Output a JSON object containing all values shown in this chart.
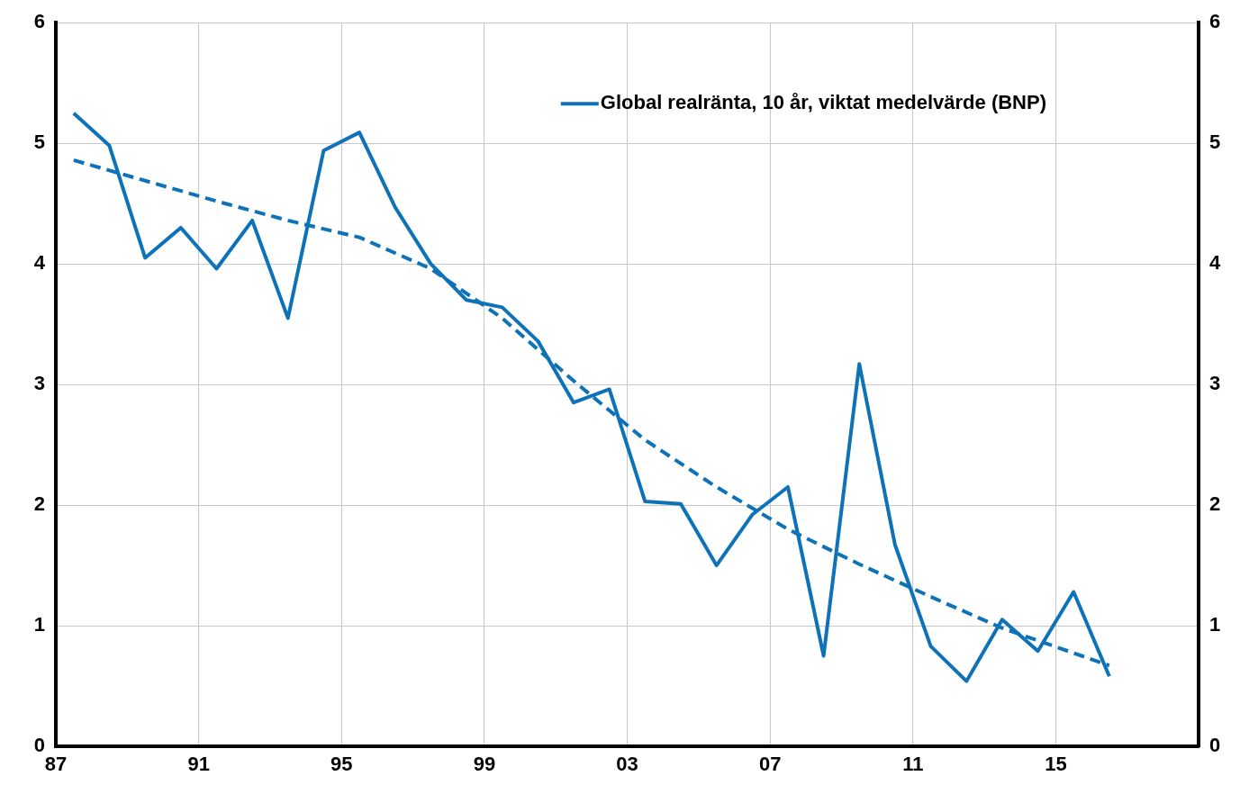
{
  "chart_data": {
    "type": "line",
    "xlim": [
      1987,
      2019
    ],
    "xticks": [
      {
        "value": 1987,
        "label": "87"
      },
      {
        "value": 1991,
        "label": "91"
      },
      {
        "value": 1995,
        "label": "95"
      },
      {
        "value": 1999,
        "label": "99"
      },
      {
        "value": 2003,
        "label": "03"
      },
      {
        "value": 2007,
        "label": "07"
      },
      {
        "value": 2011,
        "label": "11"
      },
      {
        "value": 2015,
        "label": "15"
      }
    ],
    "ylim": [
      0,
      6
    ],
    "yticks": [
      0,
      1,
      2,
      3,
      4,
      5,
      6
    ],
    "y2lim": [
      0,
      6
    ],
    "y2ticks": [
      0,
      1,
      2,
      3,
      4,
      5,
      6
    ],
    "grid": true,
    "legend": "top right",
    "marker": "none",
    "series": [
      {
        "name": "Global realränta, 10 år, viktat medelvärde (BNP)",
        "color": "#0e72b8",
        "line_style": "solid",
        "x": [
          1987.5,
          1988.5,
          1989.5,
          1990.5,
          1991.5,
          1992.5,
          1993.5,
          1994.5,
          1995.5,
          1996.5,
          1997.5,
          1998.5,
          1999.5,
          2000.5,
          2001.5,
          2002.5,
          2003.5,
          2004.5,
          2005.5,
          2006.5,
          2007.5,
          2008.5,
          2009.5,
          2010.5,
          2011.5,
          2012.5,
          2013.5,
          2014.5,
          2015.5,
          2016.5
        ],
        "values": [
          5.25,
          4.98,
          4.05,
          4.3,
          3.96,
          4.36,
          3.55,
          4.94,
          5.09,
          4.47,
          4.0,
          3.7,
          3.64,
          3.36,
          2.85,
          2.96,
          2.03,
          2.01,
          1.5,
          1.92,
          2.15,
          0.75,
          3.17,
          1.67,
          0.83,
          0.54,
          1.05,
          0.79,
          1.28,
          0.58
        ]
      },
      {
        "color": "#0e72b8",
        "line_style": "dashed",
        "x": [
          1987.5,
          1991.5,
          1993.5,
          1995.5,
          1997.5,
          1999.5,
          2001.5,
          2003.5,
          2005.5,
          2007.5,
          2009.5,
          2011.5,
          2013.5,
          2016.5
        ],
        "values": [
          4.86,
          4.52,
          4.36,
          4.22,
          3.96,
          3.55,
          3.03,
          2.54,
          2.15,
          1.8,
          1.51,
          1.24,
          0.98,
          0.67
        ]
      }
    ]
  }
}
